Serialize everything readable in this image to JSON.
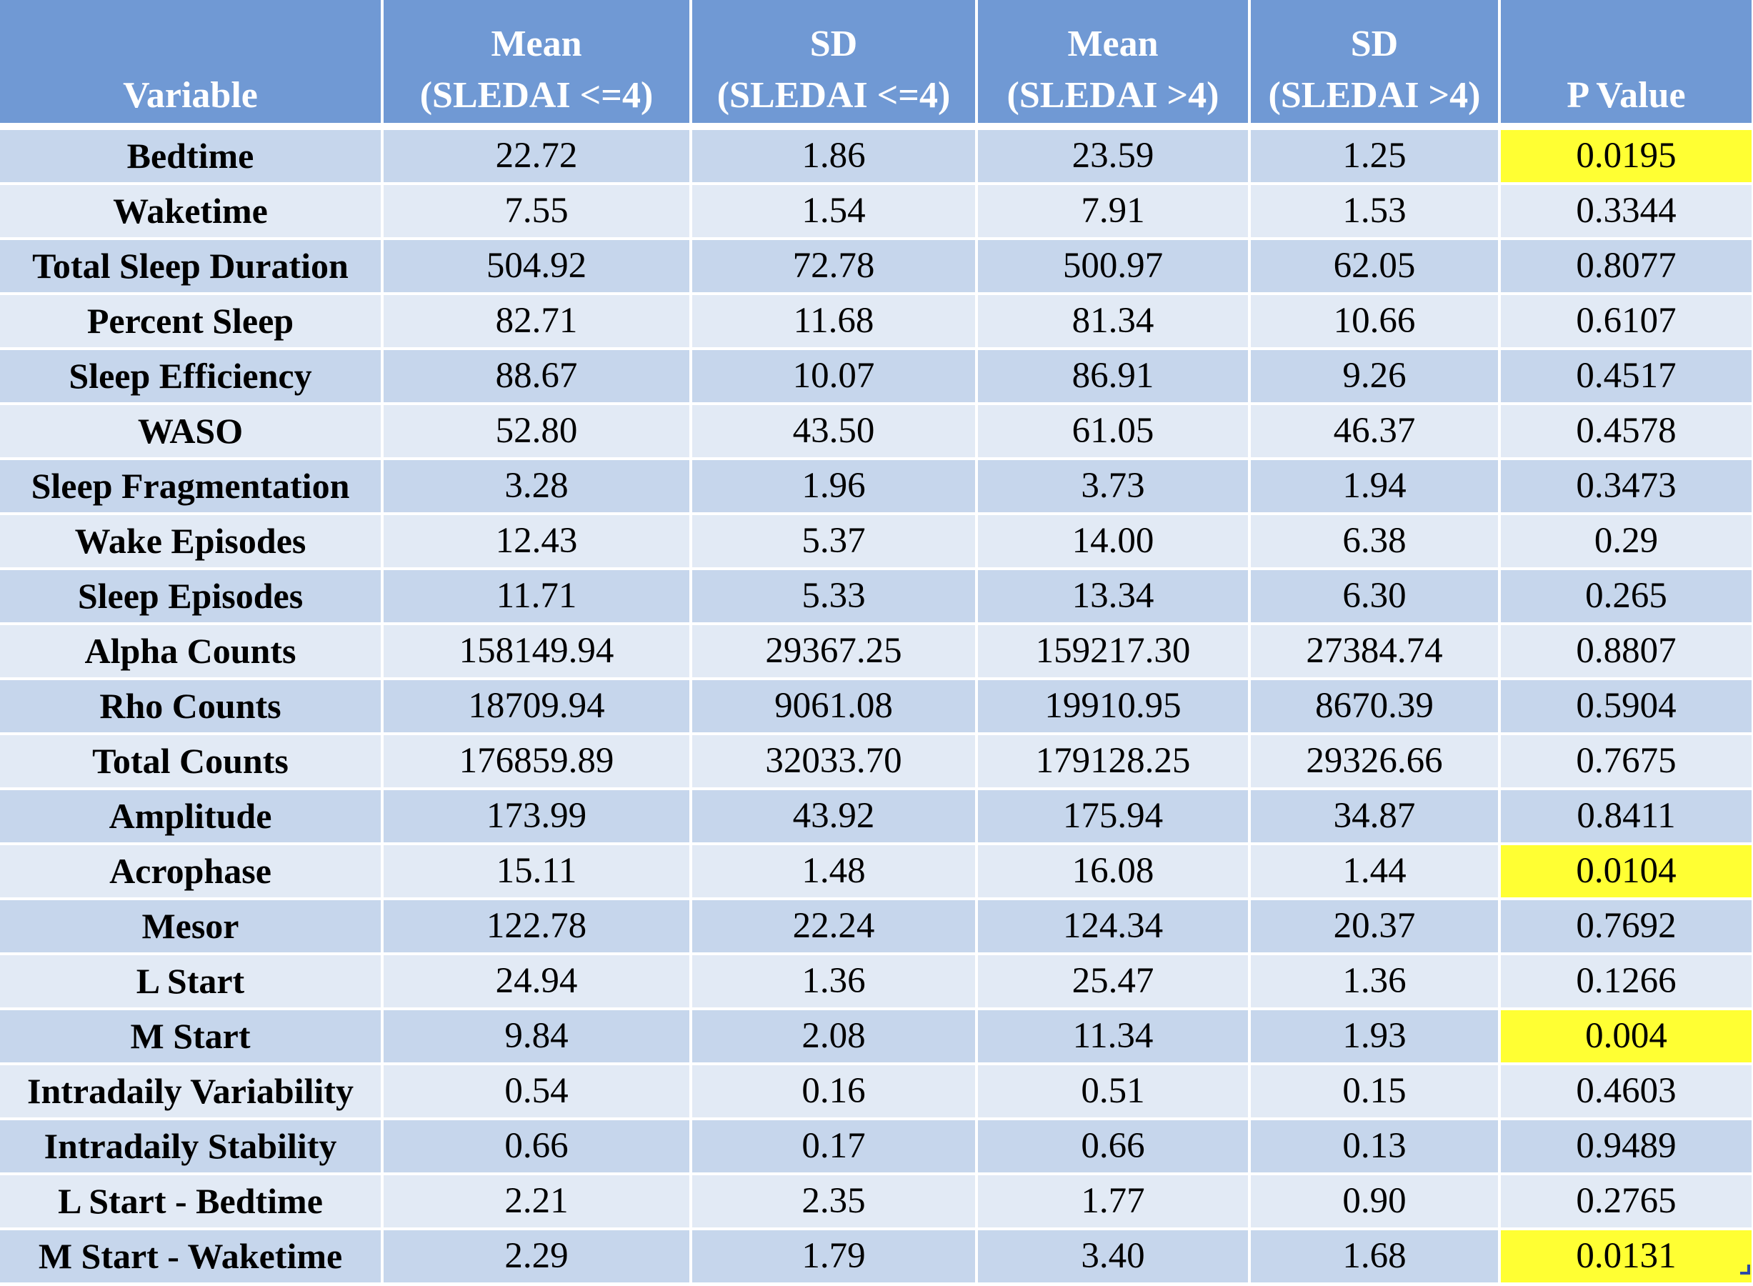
{
  "table": {
    "headers": [
      "Variable",
      "Mean\n(SLEDAI <=4)",
      "SD\n(SLEDAI <=4)",
      "Mean\n(SLEDAI >4)",
      "SD\n(SLEDAI >4)",
      "P Value"
    ],
    "highlight_color": "#ffff33",
    "header_color": "#7099d4",
    "rows": [
      {
        "variable": "Bedtime",
        "mean_low": "22.72",
        "sd_low": "1.86",
        "mean_high": "23.59",
        "sd_high": "1.25",
        "p_value": "0.0195",
        "significant": true
      },
      {
        "variable": "Waketime",
        "mean_low": "7.55",
        "sd_low": "1.54",
        "mean_high": "7.91",
        "sd_high": "1.53",
        "p_value": "0.3344",
        "significant": false
      },
      {
        "variable": "Total Sleep Duration",
        "mean_low": "504.92",
        "sd_low": "72.78",
        "mean_high": "500.97",
        "sd_high": "62.05",
        "p_value": "0.8077",
        "significant": false
      },
      {
        "variable": "Percent Sleep",
        "mean_low": "82.71",
        "sd_low": "11.68",
        "mean_high": "81.34",
        "sd_high": "10.66",
        "p_value": "0.6107",
        "significant": false
      },
      {
        "variable": "Sleep Efficiency",
        "mean_low": "88.67",
        "sd_low": "10.07",
        "mean_high": "86.91",
        "sd_high": "9.26",
        "p_value": "0.4517",
        "significant": false
      },
      {
        "variable": "WASO",
        "mean_low": "52.80",
        "sd_low": "43.50",
        "mean_high": "61.05",
        "sd_high": "46.37",
        "p_value": "0.4578",
        "significant": false
      },
      {
        "variable": "Sleep Fragmentation",
        "mean_low": "3.28",
        "sd_low": "1.96",
        "mean_high": "3.73",
        "sd_high": "1.94",
        "p_value": "0.3473",
        "significant": false
      },
      {
        "variable": "Wake Episodes",
        "mean_low": "12.43",
        "sd_low": "5.37",
        "mean_high": "14.00",
        "sd_high": "6.38",
        "p_value": "0.29",
        "significant": false
      },
      {
        "variable": "Sleep Episodes",
        "mean_low": "11.71",
        "sd_low": "5.33",
        "mean_high": "13.34",
        "sd_high": "6.30",
        "p_value": "0.265",
        "significant": false
      },
      {
        "variable": "Alpha Counts",
        "mean_low": "158149.94",
        "sd_low": "29367.25",
        "mean_high": "159217.30",
        "sd_high": "27384.74",
        "p_value": "0.8807",
        "significant": false
      },
      {
        "variable": "Rho Counts",
        "mean_low": "18709.94",
        "sd_low": "9061.08",
        "mean_high": "19910.95",
        "sd_high": "8670.39",
        "p_value": "0.5904",
        "significant": false
      },
      {
        "variable": "Total Counts",
        "mean_low": "176859.89",
        "sd_low": "32033.70",
        "mean_high": "179128.25",
        "sd_high": "29326.66",
        "p_value": "0.7675",
        "significant": false
      },
      {
        "variable": "Amplitude",
        "mean_low": "173.99",
        "sd_low": "43.92",
        "mean_high": "175.94",
        "sd_high": "34.87",
        "p_value": "0.8411",
        "significant": false
      },
      {
        "variable": "Acrophase",
        "mean_low": "15.11",
        "sd_low": "1.48",
        "mean_high": "16.08",
        "sd_high": "1.44",
        "p_value": "0.0104",
        "significant": true
      },
      {
        "variable": "Mesor",
        "mean_low": "122.78",
        "sd_low": "22.24",
        "mean_high": "124.34",
        "sd_high": "20.37",
        "p_value": "0.7692",
        "significant": false
      },
      {
        "variable": "L Start",
        "mean_low": "24.94",
        "sd_low": "1.36",
        "mean_high": "25.47",
        "sd_high": "1.36",
        "p_value": "0.1266",
        "significant": false
      },
      {
        "variable": "M Start",
        "mean_low": "9.84",
        "sd_low": "2.08",
        "mean_high": "11.34",
        "sd_high": "1.93",
        "p_value": "0.004",
        "significant": true
      },
      {
        "variable": "Intradaily Variability",
        "mean_low": "0.54",
        "sd_low": "0.16",
        "mean_high": "0.51",
        "sd_high": "0.15",
        "p_value": "0.4603",
        "significant": false
      },
      {
        "variable": "Intradaily Stability",
        "mean_low": "0.66",
        "sd_low": "0.17",
        "mean_high": "0.66",
        "sd_high": "0.13",
        "p_value": "0.9489",
        "significant": false
      },
      {
        "variable": "L Start - Bedtime",
        "mean_low": "2.21",
        "sd_low": "2.35",
        "mean_high": "1.77",
        "sd_high": "0.90",
        "p_value": "0.2765",
        "significant": false
      },
      {
        "variable": "M Start - Waketime",
        "mean_low": "2.29",
        "sd_low": "1.79",
        "mean_high": "3.40",
        "sd_high": "1.68",
        "p_value": "0.0131",
        "significant": true
      }
    ]
  }
}
